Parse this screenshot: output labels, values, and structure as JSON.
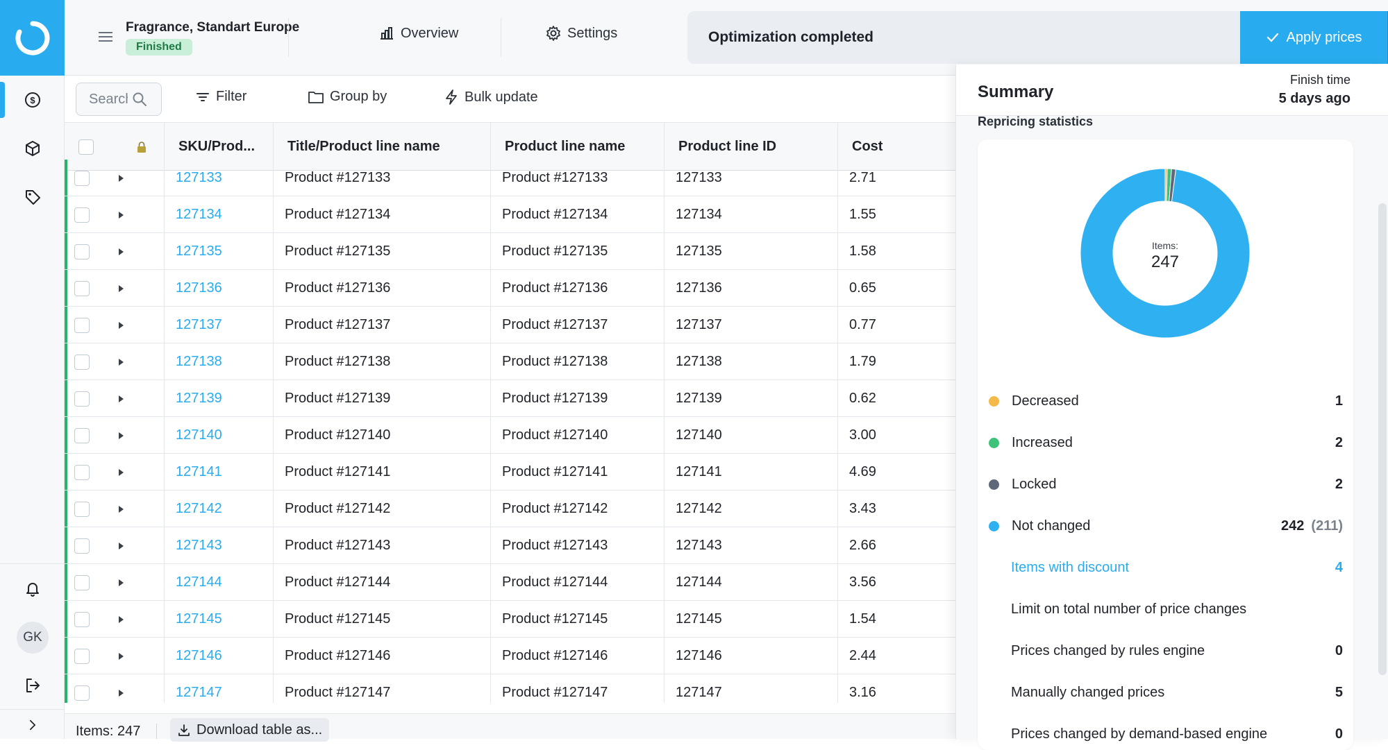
{
  "header": {
    "project_title": "Fragrance, Standart Europe",
    "status": "Finished",
    "tabs": [
      {
        "label": "Overview",
        "icon": "bar-chart-icon"
      },
      {
        "label": "Settings",
        "icon": "gear-icon"
      }
    ],
    "notice_text": "Optimization completed",
    "apply_label": "Apply prices"
  },
  "sidebar": {
    "items": [
      {
        "icon": "dollar-circle-icon",
        "active": true
      },
      {
        "icon": "box-icon"
      },
      {
        "icon": "tag-icon"
      }
    ],
    "bottom": [
      {
        "icon": "bell-icon"
      },
      {
        "avatar": "GK"
      },
      {
        "icon": "logout-icon"
      },
      {
        "icon": "chevron-right-icon"
      }
    ]
  },
  "toolbar": {
    "search_placeholder": "Search",
    "filter_label": "Filter",
    "group_by_label": "Group by",
    "bulk_update_label": "Bulk update"
  },
  "table": {
    "columns": [
      "SKU/Prod...",
      "Title/Product line name",
      "Product line name",
      "Product line ID",
      "Cost"
    ],
    "rows": [
      {
        "sku": "127133",
        "title": "Product #127133",
        "line_name": "Product #127133",
        "line_id": "127133",
        "cost": "2.71"
      },
      {
        "sku": "127134",
        "title": "Product #127134",
        "line_name": "Product #127134",
        "line_id": "127134",
        "cost": "1.55"
      },
      {
        "sku": "127135",
        "title": "Product #127135",
        "line_name": "Product #127135",
        "line_id": "127135",
        "cost": "1.58"
      },
      {
        "sku": "127136",
        "title": "Product #127136",
        "line_name": "Product #127136",
        "line_id": "127136",
        "cost": "0.65"
      },
      {
        "sku": "127137",
        "title": "Product #127137",
        "line_name": "Product #127137",
        "line_id": "127137",
        "cost": "0.77"
      },
      {
        "sku": "127138",
        "title": "Product #127138",
        "line_name": "Product #127138",
        "line_id": "127138",
        "cost": "1.79"
      },
      {
        "sku": "127139",
        "title": "Product #127139",
        "line_name": "Product #127139",
        "line_id": "127139",
        "cost": "0.62"
      },
      {
        "sku": "127140",
        "title": "Product #127140",
        "line_name": "Product #127140",
        "line_id": "127140",
        "cost": "3.00"
      },
      {
        "sku": "127141",
        "title": "Product #127141",
        "line_name": "Product #127141",
        "line_id": "127141",
        "cost": "4.69"
      },
      {
        "sku": "127142",
        "title": "Product #127142",
        "line_name": "Product #127142",
        "line_id": "127142",
        "cost": "3.43"
      },
      {
        "sku": "127143",
        "title": "Product #127143",
        "line_name": "Product #127143",
        "line_id": "127143",
        "cost": "2.66"
      },
      {
        "sku": "127144",
        "title": "Product #127144",
        "line_name": "Product #127144",
        "line_id": "127144",
        "cost": "3.56"
      },
      {
        "sku": "127145",
        "title": "Product #127145",
        "line_name": "Product #127145",
        "line_id": "127145",
        "cost": "1.54"
      },
      {
        "sku": "127146",
        "title": "Product #127146",
        "line_name": "Product #127146",
        "line_id": "127146",
        "cost": "2.44"
      },
      {
        "sku": "127147",
        "title": "Product #127147",
        "line_name": "Product #127147",
        "line_id": "127147",
        "cost": "3.16"
      }
    ]
  },
  "footer": {
    "items_count": "Items: 247",
    "download_label": "Download table as..."
  },
  "summary": {
    "title": "Summary",
    "finish_label": "Finish time",
    "finish_value": "5 days ago",
    "section_label": "Repricing statistics",
    "donut_label": "Items:",
    "donut_total": "247",
    "stats": [
      {
        "label": "Decreased",
        "value": "1",
        "color": "#f5b94a"
      },
      {
        "label": "Increased",
        "value": "2",
        "color": "#3cc27a"
      },
      {
        "label": "Locked",
        "value": "2",
        "color": "#5f6878"
      },
      {
        "label": "Not changed",
        "value": "242",
        "sub": "(211)",
        "color": "#2fb0f0"
      }
    ],
    "details": [
      {
        "label": "Items with discount",
        "value": "4",
        "highlight": true
      },
      {
        "label": "Limit on total number of price changes",
        "value": ""
      },
      {
        "label": "Prices changed by rules engine",
        "value": "0"
      },
      {
        "label": "Manually changed prices",
        "value": "5"
      },
      {
        "label": "Prices changed by demand-based engine",
        "value": "0"
      }
    ]
  },
  "colors": {
    "accent": "#29acef",
    "accent_dark": "#1b8fd0",
    "success": "#27b36a",
    "status_pill_bg": "#c9efd9"
  },
  "chart_data": {
    "type": "pie",
    "categories": [
      "Decreased",
      "Increased",
      "Locked",
      "Not changed"
    ],
    "values": [
      1,
      2,
      2,
      242
    ],
    "colors": [
      "#f5b94a",
      "#3cc27a",
      "#5f6878",
      "#2fb0f0"
    ],
    "donut": true
  }
}
